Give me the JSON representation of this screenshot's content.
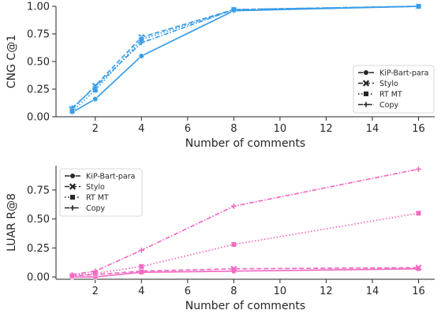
{
  "chart_data": [
    {
      "type": "line",
      "xlabel": "Number of comments",
      "ylabel": "CNG C@1",
      "x": [
        1,
        2,
        4,
        8,
        16
      ],
      "xticks": [
        2,
        4,
        6,
        8,
        10,
        12,
        14,
        16
      ],
      "xlim": [
        0.3,
        16.7
      ],
      "ylim": [
        0,
        1.0
      ],
      "yticks": [
        "0.00",
        "0.25",
        "0.50",
        "0.75",
        "1.00"
      ],
      "ytick_values": [
        0,
        0.25,
        0.5,
        0.75,
        1.0
      ],
      "color": "#3a9de8",
      "legend_position": "lower-right",
      "series": [
        {
          "name": "KiP-Bart-para",
          "marker": "circle",
          "dash": "solid",
          "values": [
            0.04,
            0.16,
            0.55,
            0.96,
            1.0
          ]
        },
        {
          "name": "Stylo",
          "marker": "x",
          "dash": "dashed",
          "values": [
            0.07,
            0.28,
            0.72,
            0.97,
            1.0
          ]
        },
        {
          "name": "RT MT",
          "marker": "square",
          "dash": "dotted",
          "values": [
            0.05,
            0.24,
            0.7,
            0.97,
            1.0
          ]
        },
        {
          "name": "Copy",
          "marker": "plus",
          "dash": "dashdot",
          "values": [
            0.08,
            0.27,
            0.67,
            0.97,
            1.0
          ]
        }
      ]
    },
    {
      "type": "line",
      "xlabel": "Number of comments",
      "ylabel": "LUAR R@8",
      "x": [
        1,
        2,
        4,
        8,
        16
      ],
      "xticks": [
        2,
        4,
        6,
        8,
        10,
        12,
        14,
        16
      ],
      "xlim": [
        0.3,
        16.7
      ],
      "ylim": [
        -0.02,
        0.96
      ],
      "yticks": [
        "0.00",
        "0.25",
        "0.50",
        "0.75"
      ],
      "ytick_values": [
        0,
        0.25,
        0.5,
        0.75
      ],
      "color": "#f26bc2",
      "legend_position": "upper-left",
      "series": [
        {
          "name": "KiP-Bart-para",
          "marker": "circle",
          "dash": "solid",
          "values": [
            0.0,
            0.0,
            0.04,
            0.05,
            0.07
          ]
        },
        {
          "name": "Stylo",
          "marker": "x",
          "dash": "dashed",
          "values": [
            0.01,
            0.02,
            0.05,
            0.07,
            0.08
          ]
        },
        {
          "name": "RT MT",
          "marker": "square",
          "dash": "dotted",
          "values": [
            0.01,
            0.03,
            0.09,
            0.28,
            0.55
          ]
        },
        {
          "name": "Copy",
          "marker": "plus",
          "dash": "dashdot",
          "values": [
            0.02,
            0.05,
            0.23,
            0.61,
            0.93
          ]
        }
      ]
    }
  ]
}
